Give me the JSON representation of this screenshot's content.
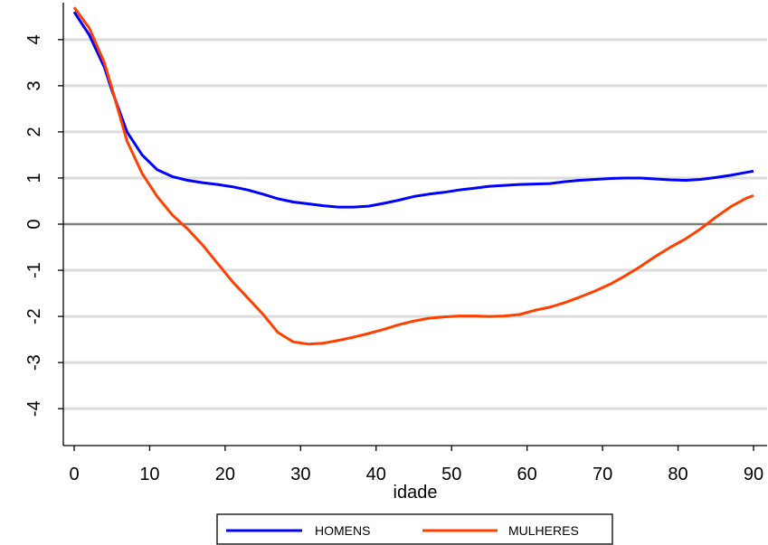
{
  "chart_data": {
    "type": "line",
    "title": "",
    "xlabel": "idade",
    "ylabel": "",
    "xlim": [
      0,
      90
    ],
    "ylim": [
      -4.8,
      4.8
    ],
    "xticks": [
      0,
      10,
      20,
      30,
      40,
      50,
      60,
      70,
      80,
      90
    ],
    "yticks": [
      -4,
      -3,
      -2,
      -1,
      0,
      1,
      2,
      3,
      4
    ],
    "grid": true,
    "zero_line": true,
    "legend_position": "bottom",
    "series": [
      {
        "name": "HOMENS",
        "color": "#0000ff",
        "x": [
          0,
          2,
          4,
          5,
          7,
          9,
          11,
          13,
          15,
          17,
          19,
          21,
          23,
          25,
          27,
          29,
          31,
          33,
          35,
          37,
          39,
          41,
          43,
          45,
          47,
          49,
          51,
          53,
          55,
          57,
          59,
          61,
          63,
          65,
          67,
          69,
          71,
          73,
          75,
          77,
          79,
          81,
          83,
          85,
          87,
          89,
          90
        ],
        "y": [
          4.6,
          4.1,
          3.4,
          2.9,
          2.0,
          1.5,
          1.18,
          1.03,
          0.95,
          0.9,
          0.86,
          0.81,
          0.74,
          0.65,
          0.55,
          0.48,
          0.44,
          0.4,
          0.37,
          0.37,
          0.39,
          0.45,
          0.52,
          0.6,
          0.65,
          0.69,
          0.74,
          0.78,
          0.82,
          0.84,
          0.86,
          0.87,
          0.88,
          0.92,
          0.95,
          0.97,
          0.99,
          1.0,
          1.0,
          0.98,
          0.96,
          0.95,
          0.97,
          1.01,
          1.06,
          1.12,
          1.15
        ]
      },
      {
        "name": "MULHERES",
        "color": "#ff4000",
        "x": [
          0,
          2,
          4,
          5,
          7,
          9,
          11,
          13,
          15,
          17,
          19,
          21,
          23,
          25,
          27,
          29,
          31,
          33,
          35,
          37,
          39,
          41,
          43,
          45,
          47,
          49,
          51,
          53,
          55,
          57,
          59,
          61,
          63,
          65,
          67,
          69,
          71,
          73,
          75,
          77,
          79,
          81,
          83,
          85,
          87,
          89,
          90
        ],
        "y": [
          4.7,
          4.25,
          3.5,
          2.95,
          1.8,
          1.1,
          0.6,
          0.2,
          -0.1,
          -0.45,
          -0.85,
          -1.25,
          -1.6,
          -1.95,
          -2.35,
          -2.55,
          -2.6,
          -2.58,
          -2.52,
          -2.45,
          -2.37,
          -2.28,
          -2.18,
          -2.1,
          -2.04,
          -2.01,
          -1.99,
          -1.99,
          -2.0,
          -1.99,
          -1.96,
          -1.87,
          -1.8,
          -1.7,
          -1.58,
          -1.45,
          -1.3,
          -1.12,
          -0.92,
          -0.7,
          -0.5,
          -0.32,
          -0.1,
          0.15,
          0.38,
          0.56,
          0.62
        ]
      }
    ]
  }
}
